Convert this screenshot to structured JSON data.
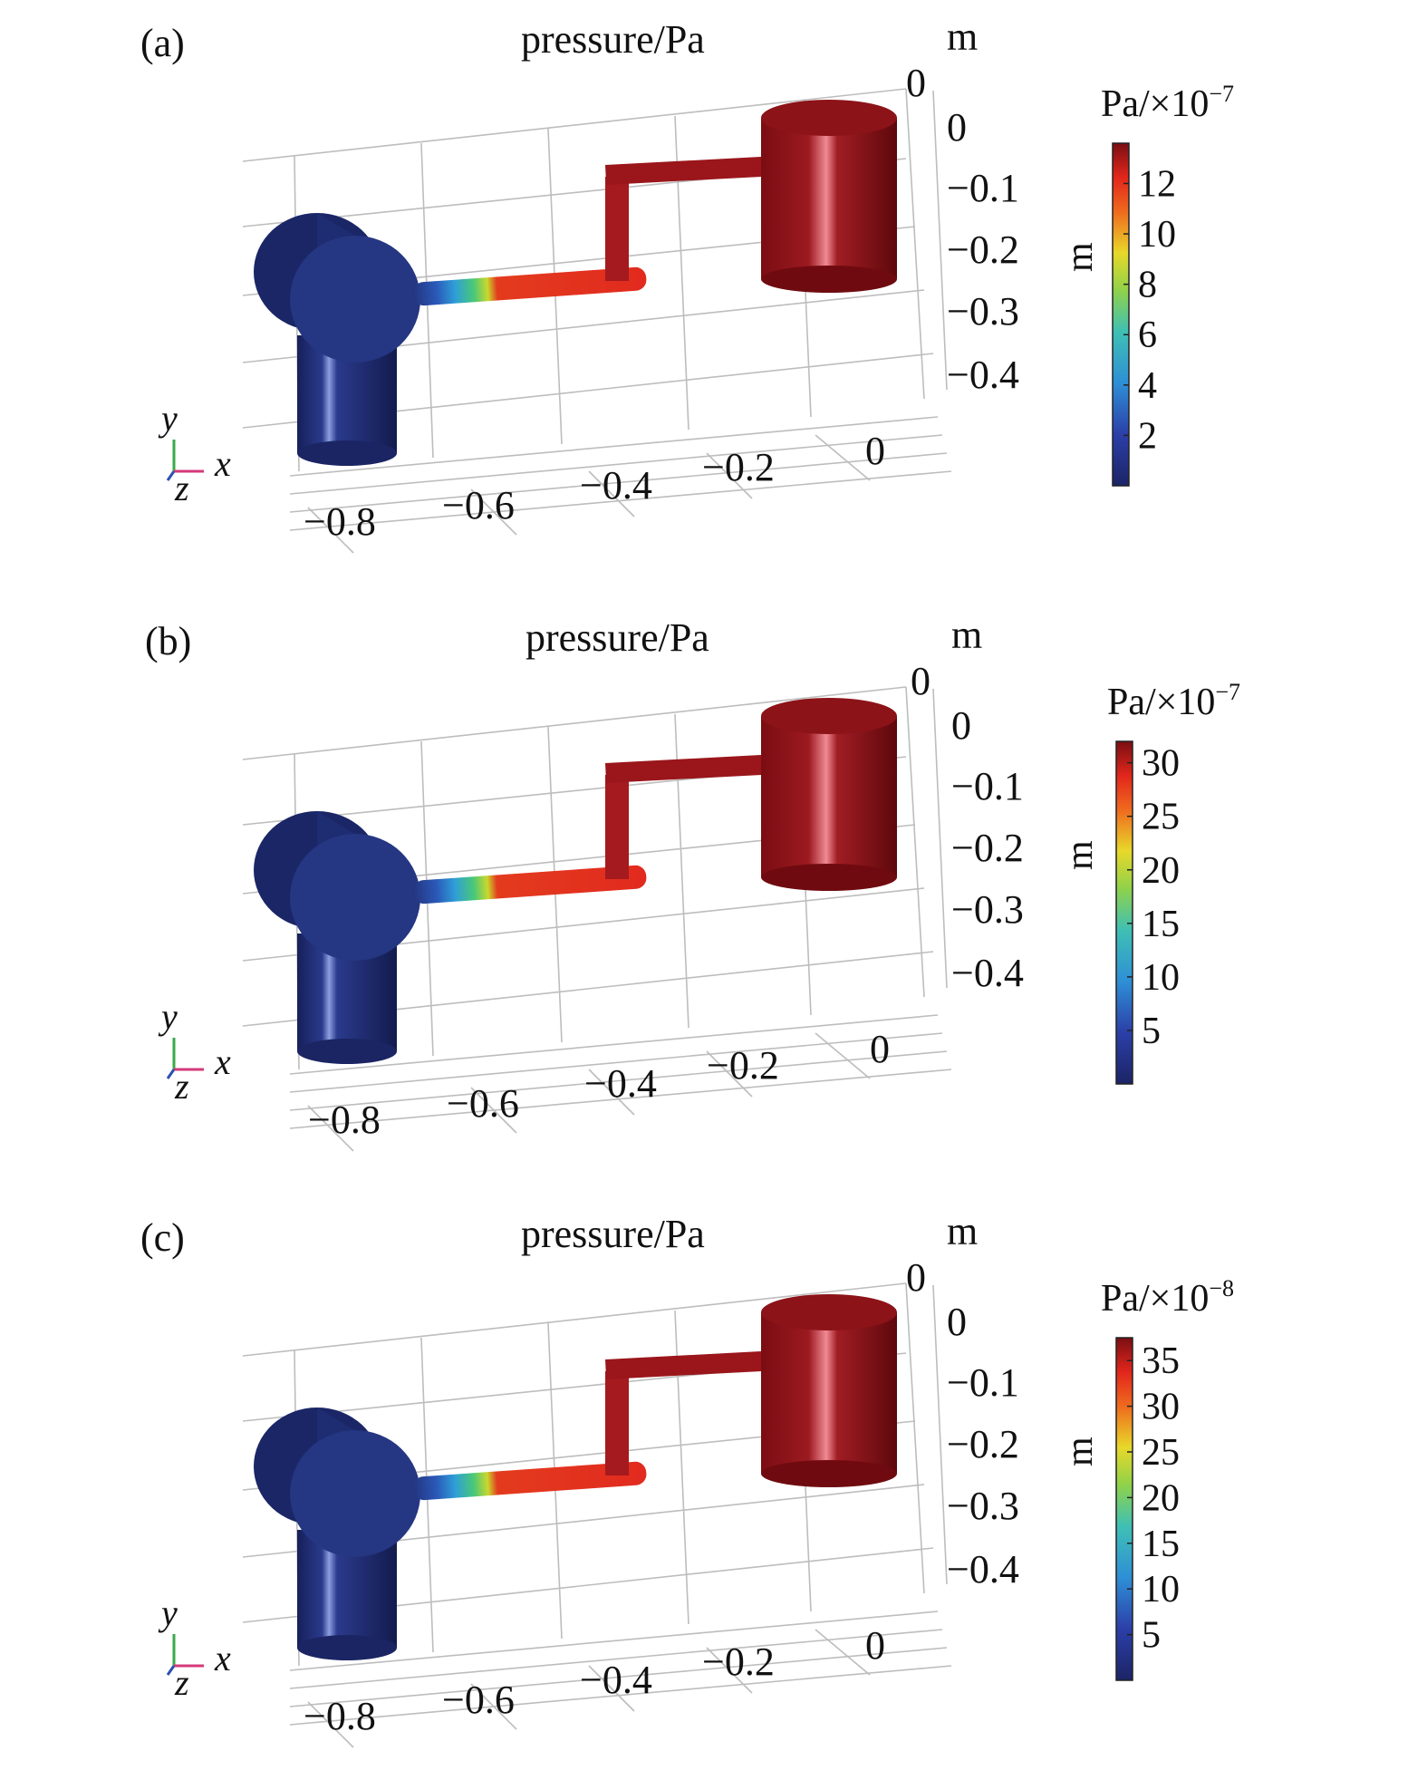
{
  "panels": [
    {
      "label": "(a)",
      "title": "pressure/Pa",
      "unit_top": "m",
      "unit_side": "m",
      "top_zero": "0",
      "y_ticks": [
        "0",
        "−0.1",
        "−0.2",
        "−0.3",
        "−0.4"
      ],
      "x_ticks": [
        "−0.8",
        "−0.6",
        "−0.4",
        "−0.2",
        "0"
      ],
      "colorbar": {
        "unit": "Pa/×10",
        "exponent": "−7",
        "ticks": [
          "12",
          "10",
          "8",
          "6",
          "4",
          "2"
        ],
        "tick_values": [
          12,
          10,
          8,
          6,
          4,
          2
        ],
        "min": 0,
        "max": 13.6
      },
      "axis_labels": {
        "x": "x",
        "y": "y",
        "z": "z"
      }
    },
    {
      "label": "(b)",
      "title": "pressure/Pa",
      "unit_top": "m",
      "unit_side": "m",
      "top_zero": "0",
      "y_ticks": [
        "0",
        "−0.1",
        "−0.2",
        "−0.3",
        "−0.4"
      ],
      "x_ticks": [
        "−0.8",
        "−0.6",
        "−0.4",
        "−0.2",
        "0"
      ],
      "colorbar": {
        "unit": "Pa/×10",
        "exponent": "−7",
        "ticks": [
          "30",
          "25",
          "20",
          "15",
          "10",
          "5"
        ],
        "tick_values": [
          30,
          25,
          20,
          15,
          10,
          5
        ],
        "min": 0,
        "max": 32
      },
      "axis_labels": {
        "x": "x",
        "y": "y",
        "z": "z"
      }
    },
    {
      "label": "(c)",
      "title": "pressure/Pa",
      "unit_top": "m",
      "unit_side": "m",
      "top_zero": "0",
      "y_ticks": [
        "0",
        "−0.1",
        "−0.2",
        "−0.3",
        "−0.4"
      ],
      "x_ticks": [
        "−0.8",
        "−0.6",
        "−0.4",
        "−0.2",
        "0"
      ],
      "colorbar": {
        "unit": "Pa/×10",
        "exponent": "−8",
        "ticks": [
          "35",
          "30",
          "25",
          "20",
          "15",
          "10",
          "5"
        ],
        "tick_values": [
          35,
          30,
          25,
          20,
          15,
          10,
          5
        ],
        "min": 0,
        "max": 37.5
      },
      "axis_labels": {
        "x": "x",
        "y": "y",
        "z": "z"
      }
    }
  ],
  "colors": {
    "low": "#1f2f7a",
    "mid": "#4ec45a",
    "high": "#e8291c",
    "tank": "#8e1418",
    "grid": "#b8b8b8"
  }
}
